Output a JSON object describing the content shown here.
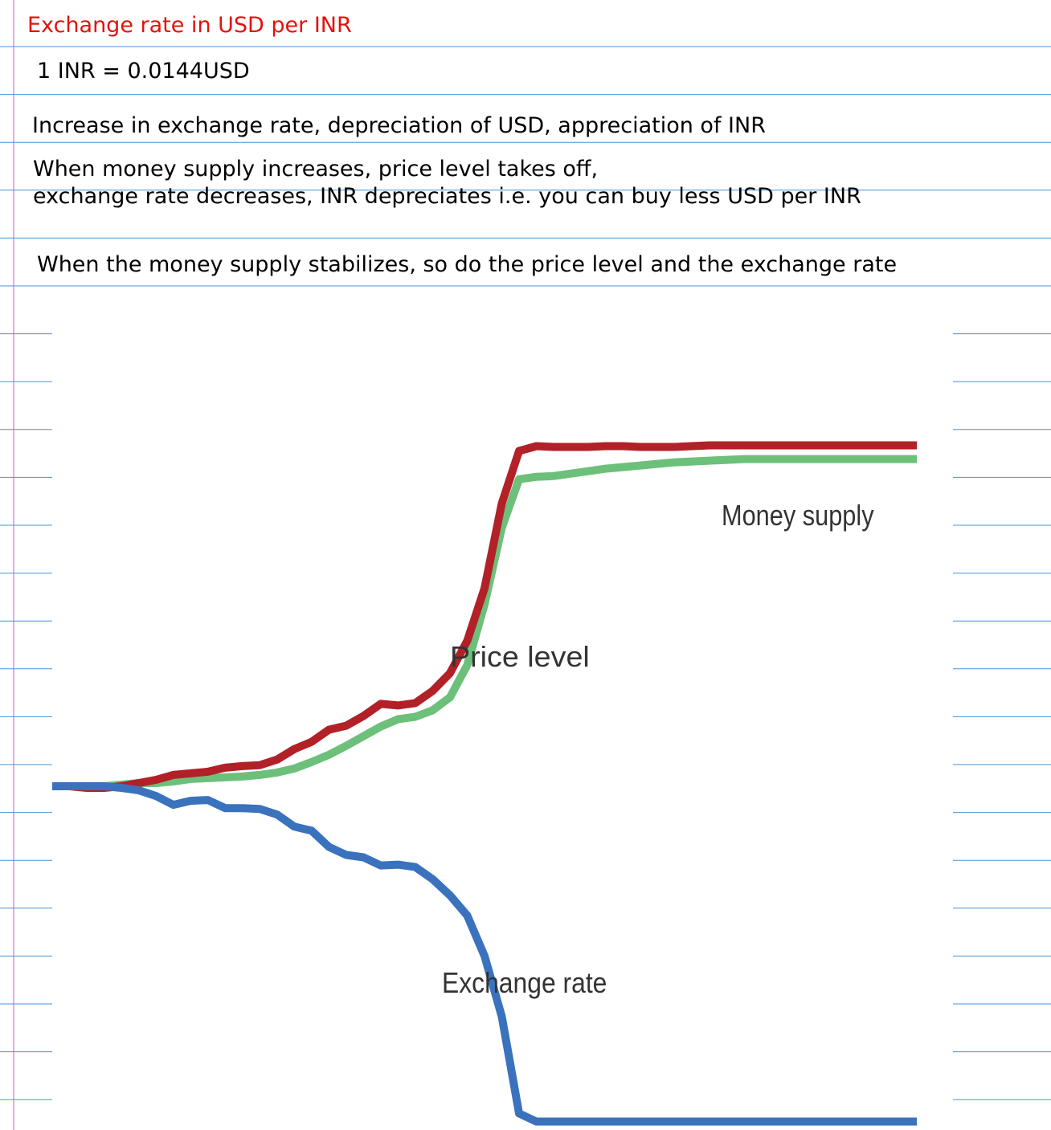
{
  "notes": {
    "title": "Exchange rate in USD per INR",
    "rate": "1 INR = 0.0144USD",
    "increase": "Increase in exchange rate, depreciation of USD, appreciation of INR",
    "money_increase_line1": "When money supply increases, price level takes off,",
    "money_increase_line2": "exchange rate decreases, INR depreciates i.e. you can buy less USD per INR",
    "stabilize": "When the money supply stabilizes, so do the price level and the exchange rate"
  },
  "colors": {
    "title": "#e3120b",
    "ruled_line": "#4a90d9",
    "margin_line": "#c060c0",
    "price_level": "#b22028",
    "money_supply": "#6cc07a",
    "exchange_rate": "#3a72bd"
  },
  "chart_data": {
    "type": "line",
    "title": "",
    "xlabel": "",
    "ylabel": "",
    "x": [
      0,
      2,
      4,
      6,
      8,
      10,
      12,
      14,
      16,
      18,
      20,
      22,
      24,
      26,
      28,
      30,
      32,
      34,
      36,
      38,
      40,
      42,
      44,
      46,
      48,
      50,
      52,
      54,
      56,
      58,
      60,
      62,
      64,
      66,
      68,
      70,
      72,
      74,
      76,
      78,
      80,
      82,
      84,
      86,
      88,
      90,
      92,
      94,
      96,
      98,
      100
    ],
    "ylim": [
      -100,
      100
    ],
    "grid": false,
    "legend": "none",
    "series": [
      {
        "name": "Price level",
        "color": "#b22028",
        "values": [
          0,
          0,
          -0.4,
          -0.4,
          0,
          0.8,
          1.6,
          2.8,
          3.2,
          3.6,
          4.6,
          5.0,
          5.2,
          6.6,
          9.2,
          11.0,
          14.0,
          15.0,
          17.4,
          20.4,
          20.0,
          20.6,
          23.6,
          28.0,
          36.0,
          49.0,
          70.0,
          83.0,
          84.2,
          84.0,
          84.0,
          84.0,
          84.2,
          84.2,
          84.0,
          84.0,
          84.0,
          84.2,
          84.4,
          84.4,
          84.4,
          84.4,
          84.4,
          84.4,
          84.4,
          84.4,
          84.4,
          84.4,
          84.4,
          84.4,
          84.4
        ]
      },
      {
        "name": "Money supply",
        "color": "#6cc07a",
        "values": [
          0,
          0,
          0,
          0,
          0.4,
          0.8,
          0.8,
          1.2,
          1.8,
          2.0,
          2.2,
          2.4,
          2.8,
          3.4,
          4.4,
          6.0,
          7.8,
          10.0,
          12.4,
          14.8,
          16.6,
          17.2,
          18.8,
          22.0,
          30.0,
          45.0,
          64.0,
          76.0,
          76.6,
          76.8,
          77.4,
          78.0,
          78.6,
          79.0,
          79.4,
          79.8,
          80.2,
          80.4,
          80.6,
          80.8,
          81.0,
          81.0,
          81.0,
          81.0,
          81.0,
          81.0,
          81.0,
          81.0,
          81.0,
          81.0,
          81.0
        ]
      },
      {
        "name": "Exchange rate",
        "color": "#3a72bd",
        "values": [
          0,
          0,
          0,
          0,
          -0.4,
          -1.0,
          -2.4,
          -4.6,
          -3.6,
          -3.4,
          -5.4,
          -5.4,
          -5.6,
          -7.0,
          -10.0,
          -11.0,
          -15.0,
          -17.0,
          -17.6,
          -19.6,
          -19.4,
          -20.0,
          -23.0,
          -27.0,
          -32.0,
          -42.0,
          -57.0,
          -81.0,
          -83.0,
          -83.0,
          -83.0,
          -83.0,
          -83.0,
          -83.0,
          -83.0,
          -83.0,
          -83.0,
          -83.0,
          -83.0,
          -83.0,
          -83.0,
          -83.0,
          -83.0,
          -83.0,
          -83.0,
          -83.0,
          -83.0,
          -83.0,
          -83.0,
          -83.0,
          -83.0
        ]
      }
    ],
    "annotations": [
      {
        "text": "Money supply",
        "series": "Money supply"
      },
      {
        "text": "Price level",
        "series": "Price level"
      },
      {
        "text": "Exchange rate",
        "series": "Exchange rate"
      }
    ]
  }
}
